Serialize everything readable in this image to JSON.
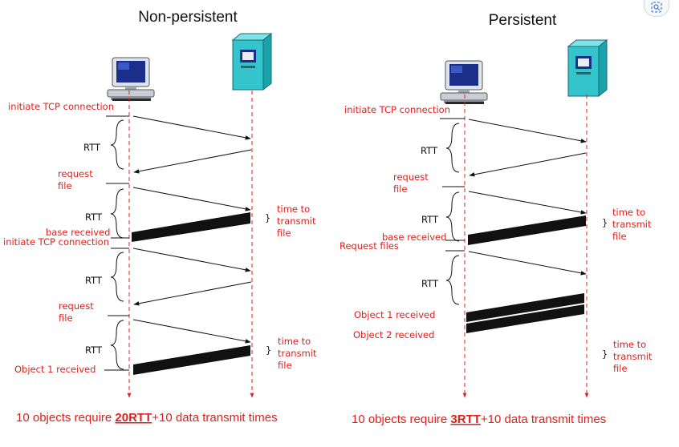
{
  "left": {
    "title": "Non-persistent",
    "initiate1": "initiate TCP connection",
    "rtt1": "RTT",
    "request1": [
      "request",
      "file"
    ],
    "rtt2": "RTT",
    "transmit1": [
      "time to",
      "transmit",
      "file"
    ],
    "base_received": "base received",
    "initiate2": "initiate TCP connection",
    "rtt3": "RTT",
    "request2": [
      "request",
      "file"
    ],
    "rtt4": "RTT",
    "transmit2": [
      "time to",
      "transmit",
      "file"
    ],
    "object1": "Object 1 received",
    "footer_pre": "10 objects require ",
    "footer_bold": "20RTT",
    "footer_post": "+10 data transmit times"
  },
  "right": {
    "title": "Persistent",
    "initiate1": "initiate TCP connection",
    "rtt1": "RTT",
    "request1": [
      "request",
      "file"
    ],
    "rtt2": "RTT",
    "transmit1": [
      "time to",
      "transmit",
      "file"
    ],
    "base_received": "base received",
    "request_files": "Request files",
    "rtt3": "RTT",
    "object1": "Object 1 received",
    "object2": "Object 2 received",
    "transmit2": [
      "time to",
      "transmit",
      "file"
    ],
    "footer_pre": "10 objects require ",
    "footer_bold": "3RTT",
    "footer_post": "+10 data transmit times"
  },
  "colors": {
    "timeline": "#e0201c",
    "label": "#e0201c",
    "server": "#33c4cc",
    "monitor": "#1b2f8a"
  },
  "icons": {
    "client": "desktop-computer-icon",
    "server": "server-tower-icon",
    "corner": "image-search-icon"
  }
}
